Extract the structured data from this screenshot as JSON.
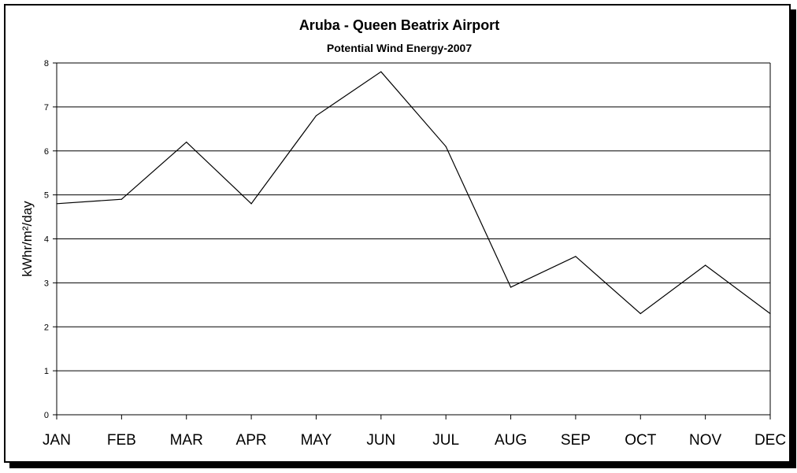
{
  "chart_data": {
    "type": "line",
    "title": "Aruba - Queen Beatrix  Airport",
    "subtitle": "Potential Wind Energy-2007",
    "xlabel": "",
    "ylabel": "kWhr/m²/day",
    "ylim": [
      0,
      8
    ],
    "yticks": [
      0,
      1,
      2,
      3,
      4,
      5,
      6,
      7,
      8
    ],
    "grid": true,
    "categories": [
      "JAN",
      "FEB",
      "MAR",
      "APR",
      "MAY",
      "JUN",
      "JUL",
      "AUG",
      "SEP",
      "OCT",
      "NOV",
      "DEC"
    ],
    "series": [
      {
        "values": [
          4.8,
          4.9,
          6.2,
          4.8,
          6.8,
          7.8,
          6.1,
          2.9,
          3.6,
          2.3,
          3.4,
          2.3
        ]
      }
    ],
    "colors": {
      "line": "#000000",
      "grid": "#000000",
      "background": "#ffffff"
    }
  }
}
